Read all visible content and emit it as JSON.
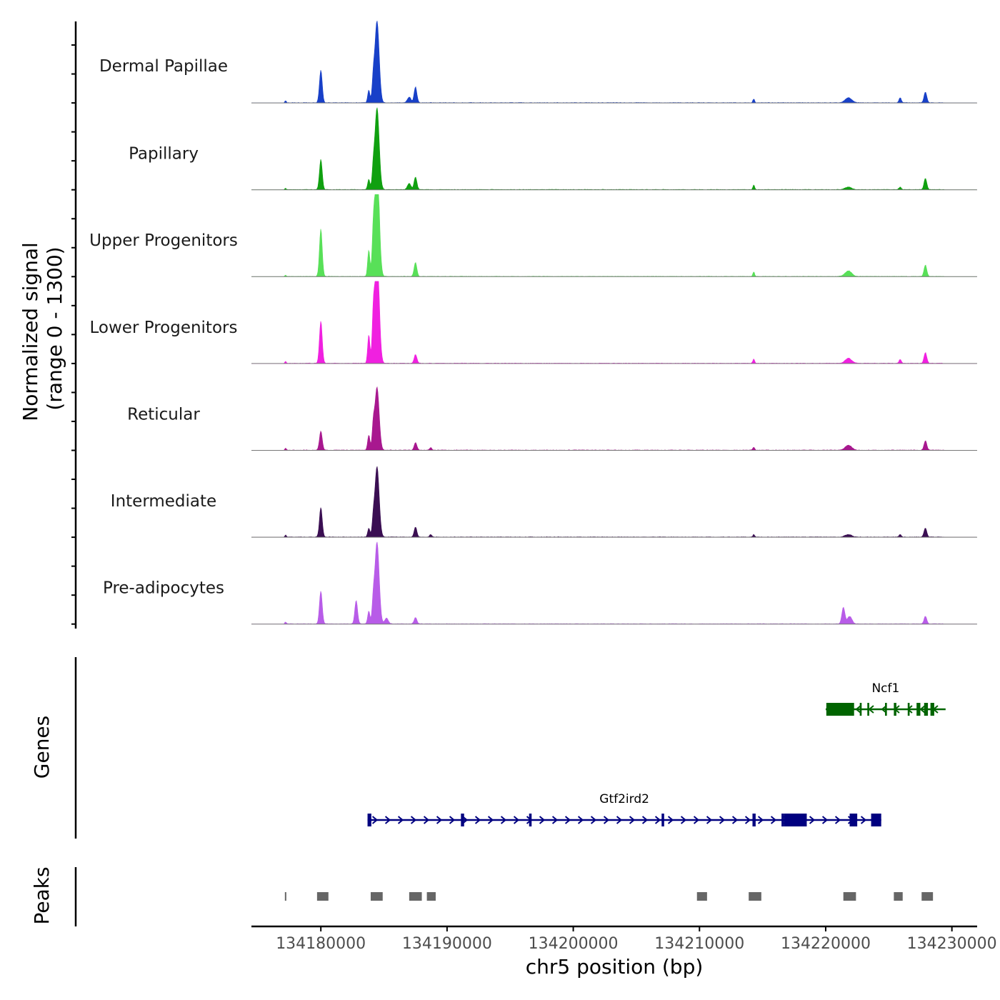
{
  "chart_data": {
    "type": "area",
    "title": "",
    "xlabel": "chr5 position (bp)",
    "ylabel": "Normalized signal\n(range 0 - 1300)",
    "ylabel_lines": [
      "Normalized signal",
      "(range 0 - 1300)"
    ],
    "ylim": [
      0,
      1300
    ],
    "xlim": [
      134174500,
      134232000
    ],
    "x_ticks": [
      134180000,
      134190000,
      134200000,
      134210000,
      134220000,
      134230000
    ],
    "x_tick_labels": [
      "134180000",
      "134190000",
      "134200000",
      "134210000",
      "134220000",
      "134230000"
    ],
    "tracks": [
      {
        "name": "Dermal Papillae",
        "color": "#1840c8",
        "peaks": [
          [
            134177200,
            30,
            60
          ],
          [
            134180000,
            520,
            110
          ],
          [
            134183800,
            200,
            90
          ],
          [
            134184150,
            300,
            90
          ],
          [
            134184450,
            1300,
            170
          ],
          [
            134187000,
            90,
            140
          ],
          [
            134187500,
            250,
            110
          ],
          [
            134214300,
            60,
            70
          ],
          [
            134221800,
            80,
            260
          ],
          [
            134225900,
            80,
            90
          ],
          [
            134227900,
            170,
            110
          ]
        ]
      },
      {
        "name": "Papillary",
        "color": "#10a010",
        "peaks": [
          [
            134177200,
            20,
            60
          ],
          [
            134180000,
            480,
            110
          ],
          [
            134183800,
            160,
            90
          ],
          [
            134184150,
            260,
            90
          ],
          [
            134184450,
            1300,
            170
          ],
          [
            134187000,
            100,
            140
          ],
          [
            134187500,
            200,
            110
          ],
          [
            134214300,
            70,
            70
          ],
          [
            134221800,
            40,
            260
          ],
          [
            134225900,
            40,
            90
          ],
          [
            134227900,
            180,
            110
          ]
        ]
      },
      {
        "name": "Upper Progenitors",
        "color": "#58e058",
        "peaks": [
          [
            134177200,
            20,
            60
          ],
          [
            134180000,
            750,
            110
          ],
          [
            134183800,
            420,
            90
          ],
          [
            134184150,
            560,
            90
          ],
          [
            134184450,
            1900,
            170
          ],
          [
            134187500,
            220,
            110
          ],
          [
            134214300,
            70,
            70
          ],
          [
            134221800,
            90,
            260
          ],
          [
            134227900,
            180,
            110
          ]
        ]
      },
      {
        "name": "Lower Progenitors",
        "color": "#f020e0",
        "peaks": [
          [
            134177200,
            30,
            60
          ],
          [
            134180000,
            670,
            110
          ],
          [
            134183800,
            450,
            90
          ],
          [
            134184150,
            620,
            90
          ],
          [
            134184450,
            1800,
            170
          ],
          [
            134187500,
            140,
            110
          ],
          [
            134214300,
            70,
            70
          ],
          [
            134221800,
            80,
            260
          ],
          [
            134225900,
            60,
            90
          ],
          [
            134227900,
            170,
            110
          ]
        ]
      },
      {
        "name": "Reticular",
        "color": "#a8188f",
        "peaks": [
          [
            134177200,
            30,
            60
          ],
          [
            134180000,
            300,
            110
          ],
          [
            134183800,
            240,
            90
          ],
          [
            134184150,
            320,
            90
          ],
          [
            134184450,
            1000,
            170
          ],
          [
            134187500,
            120,
            110
          ],
          [
            134188700,
            40,
            90
          ],
          [
            134214300,
            50,
            70
          ],
          [
            134221800,
            80,
            260
          ],
          [
            134227900,
            150,
            110
          ]
        ]
      },
      {
        "name": "Intermediate",
        "color": "#3a0e52",
        "peaks": [
          [
            134177200,
            30,
            60
          ],
          [
            134180000,
            470,
            110
          ],
          [
            134183800,
            140,
            90
          ],
          [
            134184150,
            220,
            90
          ],
          [
            134184450,
            1120,
            170
          ],
          [
            134187500,
            160,
            110
          ],
          [
            134188700,
            40,
            90
          ],
          [
            134214300,
            40,
            70
          ],
          [
            134221800,
            40,
            260
          ],
          [
            134225900,
            40,
            90
          ],
          [
            134227900,
            140,
            110
          ]
        ]
      },
      {
        "name": "Pre-adipocytes",
        "color": "#b85ce8",
        "peaks": [
          [
            134177200,
            30,
            60
          ],
          [
            134180000,
            520,
            110
          ],
          [
            134182800,
            370,
            110
          ],
          [
            134183800,
            200,
            90
          ],
          [
            134184150,
            300,
            90
          ],
          [
            134184450,
            1300,
            170
          ],
          [
            134185200,
            90,
            140
          ],
          [
            134187500,
            100,
            110
          ],
          [
            134221400,
            260,
            120
          ],
          [
            134221900,
            120,
            180
          ],
          [
            134227900,
            120,
            110
          ]
        ]
      }
    ],
    "genes": [
      {
        "name": "Ncf1",
        "strand": "-",
        "color": "#006400",
        "start": 134220000,
        "end": 134229500,
        "row": 0,
        "exons": [
          [
            134220050,
            134222250
          ],
          [
            134222700,
            134222850
          ],
          [
            134223300,
            134223450
          ],
          [
            134224700,
            134224850
          ],
          [
            134225400,
            134225600
          ],
          [
            134226500,
            134226650
          ],
          [
            134227200,
            134227500
          ],
          [
            134227800,
            134228100
          ],
          [
            134228300,
            134228600
          ]
        ]
      },
      {
        "name": "Gtf2ird2",
        "strand": "+",
        "color": "#000080",
        "start": 134183700,
        "end": 134224400,
        "row": 1,
        "exons": [
          [
            134183700,
            134184000
          ],
          [
            134191100,
            134191350
          ],
          [
            134196500,
            134196700
          ],
          [
            134207000,
            134207200
          ],
          [
            134214200,
            134214450
          ],
          [
            134216500,
            134216700
          ],
          [
            134216700,
            134218500
          ],
          [
            134221900,
            134222500
          ],
          [
            134223600,
            134224400
          ]
        ]
      }
    ],
    "genes_label": "Genes",
    "peaks_label": "Peaks",
    "peak_regions": [
      [
        134177150,
        134177250
      ],
      [
        134179700,
        134180600
      ],
      [
        134183950,
        134184900
      ],
      [
        134187000,
        134188000
      ],
      [
        134188400,
        134189100
      ],
      [
        134209800,
        134210600
      ],
      [
        134213900,
        134214900
      ],
      [
        134221400,
        134222400
      ],
      [
        134225400,
        134226100
      ],
      [
        134227600,
        134228500
      ]
    ]
  }
}
